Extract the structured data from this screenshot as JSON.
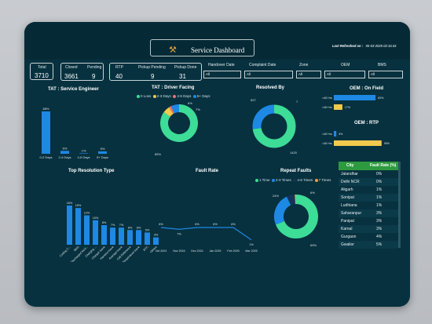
{
  "header": {
    "title": "Service Dashboard",
    "refresh_label": "Last Refreshed on :",
    "refresh_value": "05-03-2025 02:16:44",
    "icon": "tools-icon"
  },
  "kpis": {
    "total_label": "Total",
    "total_value": "3710",
    "closed_label": "Closed",
    "closed_value": "3661",
    "pending_label": "Pending",
    "pending_value": "9",
    "rtp_label": "RTP",
    "rtp_value": "40",
    "pickup_pending_label": "Pickup Pending",
    "pickup_pending_value": "9",
    "pickup_done_label": "Pickup Done",
    "pickup_done_value": "31"
  },
  "filters": [
    {
      "label": "Handover Date",
      "value": "All"
    },
    {
      "label": "Complaint Date",
      "value": "All"
    },
    {
      "label": "Zone",
      "value": "All"
    },
    {
      "label": "OEM",
      "value": "All"
    },
    {
      "label": "BMS",
      "value": "All"
    }
  ],
  "tat_engineer": {
    "title": "TAT : Service Engineer",
    "chart_data": {
      "type": "bar",
      "categories": [
        "0-2 Days",
        "2-4 Days",
        "4-5 Days",
        "5+ Days"
      ],
      "values": [
        88,
        6,
        1,
        5
      ],
      "labels": [
        "88%",
        "6%",
        "1%",
        "5%"
      ],
      "color": "#1e88e5"
    }
  },
  "tat_driver": {
    "title": "TAT : Driver Facing",
    "legend": [
      "0 Loss",
      "2-3 Days",
      "4-5 Days",
      "5+ Days"
    ],
    "colors": [
      "#3ddc97",
      "#f2c94c",
      "#e57373",
      "#1e88e5"
    ],
    "chart_data": {
      "type": "pie",
      "values": [
        85,
        6,
        2,
        7
      ],
      "labels": [
        "85%",
        "6%",
        "",
        "7%"
      ]
    }
  },
  "resolved_by": {
    "title": "Resolved By",
    "colors": [
      "#3ddc97",
      "#1e88e5"
    ],
    "chart_data": {
      "type": "pie",
      "values": [
        1420,
        527
      ],
      "labels": [
        "1420",
        "527"
      ],
      "extra_label": "7"
    }
  },
  "oem_field": {
    "title": "OEM : On Field",
    "chart_data": {
      "type": "bar",
      "categories": [
        "<48 Hrs",
        ">48 Hrs"
      ],
      "values": [
        83,
        17
      ],
      "labels": [
        "83%",
        "17%"
      ],
      "colors": [
        "#1e88e5",
        "#f2c94c"
      ]
    }
  },
  "oem_rtp": {
    "title": "OEM : RTP",
    "chart_data": {
      "type": "bar",
      "categories": [
        "<48 Hrs",
        ">48 Hrs"
      ],
      "values": [
        5,
        95
      ],
      "labels": [
        "5%",
        "95%"
      ],
      "colors": [
        "#1e88e5",
        "#f2c94c"
      ]
    }
  },
  "top_resolution": {
    "title": "Top Resolution Type",
    "chart_data": {
      "type": "bar",
      "categories": [
        "Cutting C...",
        "BMS",
        "Discharged Mod...",
        "Charging ...",
        "Charger issue",
        "Harness Issue",
        "Average issue",
        "Cell Reference",
        "Temperature issue",
        "BTC",
        "Others"
      ],
      "values": [
        16,
        15,
        12,
        10,
        8,
        7,
        7,
        6,
        6,
        5,
        3
      ],
      "labels": [
        "16%",
        "15%",
        "12%",
        "10%",
        "8%",
        "7%",
        "7%",
        "6%",
        "6%",
        "5%",
        "3%"
      ],
      "color": "#1e88e5"
    }
  },
  "fault_rate": {
    "title": "Fault Rate",
    "chart_data": {
      "type": "line",
      "categories": [
        "Oct 2024",
        "Nov 2024",
        "Dec 2024",
        "Jan 2025",
        "Feb 2025",
        "Mar 2025"
      ],
      "values": [
        8,
        7,
        8,
        8,
        8,
        1
      ],
      "labels": [
        "8%",
        "7%",
        "8%",
        "8%",
        "8%",
        "1%"
      ],
      "color": "#1e88e5"
    }
  },
  "repeat_faults": {
    "title": "Repeat Faults",
    "legend": [
      "1 Time",
      "2-3 Times",
      "4-6 Times",
      "7 Times"
    ],
    "colors": [
      "#3ddc97",
      "#1e88e5",
      "#12345a",
      "#e8a13a"
    ],
    "chart_data": {
      "type": "pie",
      "values": [
        69,
        24,
        6,
        1
      ],
      "labels": [
        "69%",
        "24%",
        "6%",
        ""
      ]
    }
  },
  "city_table": {
    "headers": [
      "City",
      "Fault Rate (%)"
    ],
    "rows": [
      [
        "Jalandhar",
        "0%"
      ],
      [
        "Delhi NCR",
        "0%"
      ],
      [
        "Aligarh",
        "1%"
      ],
      [
        "Sonipat",
        "1%"
      ],
      [
        "Ludhiana",
        "1%"
      ],
      [
        "Saharanpur",
        "3%"
      ],
      [
        "Panipat",
        "3%"
      ],
      [
        "Karnal",
        "3%"
      ],
      [
        "Gurgaon",
        "4%"
      ],
      [
        "Gwalior",
        "5%"
      ]
    ]
  }
}
